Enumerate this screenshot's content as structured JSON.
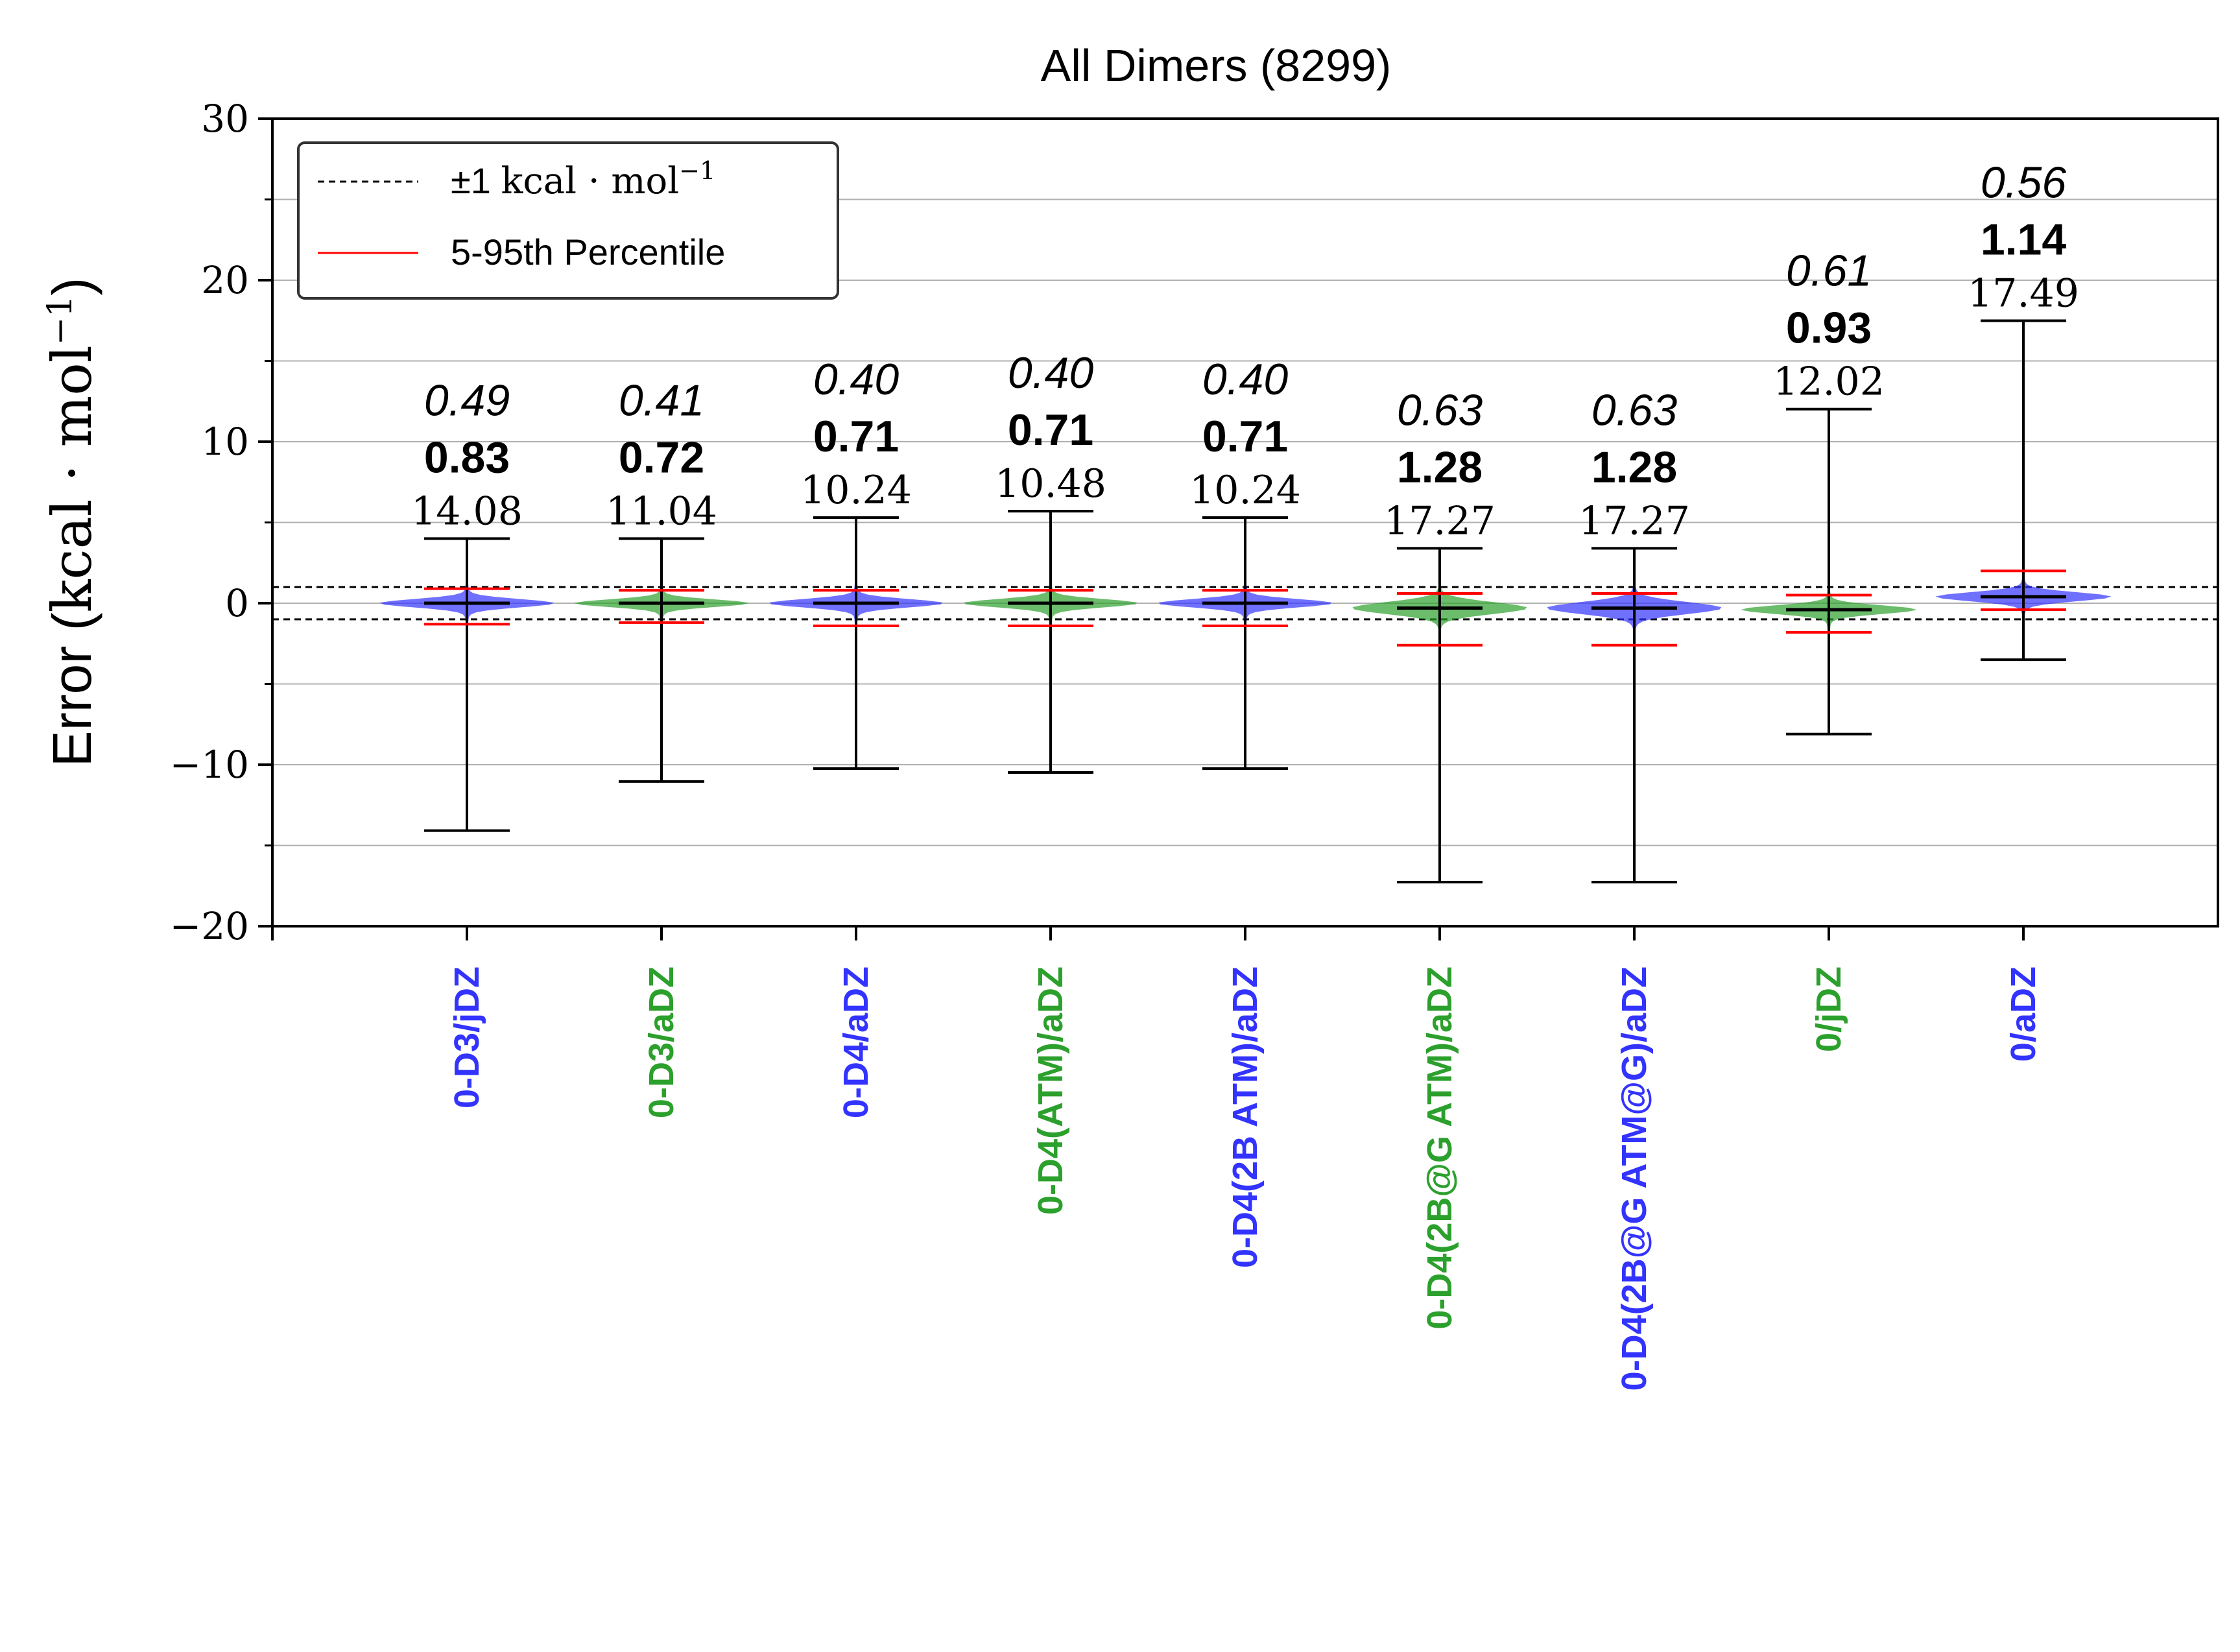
{
  "colors": {
    "blue": "#3333ff",
    "green": "#2ca02c",
    "red": "#ff0000",
    "black": "#000000",
    "grid": "#b0b0b0"
  },
  "chart_data": {
    "type": "violin",
    "title": "All Dimers (8299)",
    "ylabel_prefix": "Error (",
    "ylabel_unit": "kcal · mol",
    "ylabel_exp": "−1",
    "ylabel_suffix": ")",
    "ylim": [
      -20,
      30
    ],
    "yticks": [
      -20,
      -10,
      0,
      10,
      20,
      30
    ],
    "ytick_labels": [
      "−20",
      "−10",
      "0",
      "10",
      "20",
      "30"
    ],
    "grid": "horizontal",
    "reference_lines": [
      1,
      -1
    ],
    "legend": {
      "placement": "top-left",
      "entries": [
        {
          "label_prefix": "±1 ",
          "label_serif": "kcal · mol",
          "label_exp": "−1",
          "style": "dashed",
          "color": "#000000"
        },
        {
          "label": "5-95th Percentile",
          "style": "solid",
          "color": "#ff0000"
        }
      ]
    },
    "categories": [
      {
        "label": "0-D3/jDZ",
        "color": "#3333ff",
        "min": -14.08,
        "max": 4.0,
        "p5": -1.3,
        "p95": 0.9,
        "mean": 0.0,
        "mae_italic": "0.49",
        "rmse_bold": "0.83",
        "maxerr": "14.08"
      },
      {
        "label": "0-D3/aDZ",
        "color": "#2ca02c",
        "min": -11.04,
        "max": 4.0,
        "p5": -1.2,
        "p95": 0.8,
        "mean": 0.0,
        "mae_italic": "0.41",
        "rmse_bold": "0.72",
        "maxerr": "11.04"
      },
      {
        "label": "0-D4/aDZ",
        "color": "#3333ff",
        "min": -10.24,
        "max": 5.3,
        "p5": -1.4,
        "p95": 0.8,
        "mean": 0.0,
        "mae_italic": "0.40",
        "rmse_bold": "0.71",
        "maxerr": "10.24"
      },
      {
        "label": "0-D4(ATM)/aDZ",
        "color": "#2ca02c",
        "min": -10.48,
        "max": 5.7,
        "p5": -1.4,
        "p95": 0.8,
        "mean": 0.0,
        "mae_italic": "0.40",
        "rmse_bold": "0.71",
        "maxerr": "10.48"
      },
      {
        "label": "0-D4(2B ATM)/aDZ",
        "color": "#3333ff",
        "min": -10.24,
        "max": 5.3,
        "p5": -1.4,
        "p95": 0.8,
        "mean": 0.0,
        "mae_italic": "0.40",
        "rmse_bold": "0.71",
        "maxerr": "10.24"
      },
      {
        "label": "0-D4(2B@G ATM)/aDZ",
        "color": "#2ca02c",
        "min": -17.27,
        "max": 3.4,
        "p5": -2.6,
        "p95": 0.6,
        "mean": -0.3,
        "mae_italic": "0.63",
        "rmse_bold": "1.28",
        "maxerr": "17.27"
      },
      {
        "label": "0-D4(2B@G ATM@G)/aDZ",
        "color": "#3333ff",
        "min": -17.27,
        "max": 3.4,
        "p5": -2.6,
        "p95": 0.6,
        "mean": -0.3,
        "mae_italic": "0.63",
        "rmse_bold": "1.28",
        "maxerr": "17.27"
      },
      {
        "label": "0/jDZ",
        "color": "#2ca02c",
        "min": -8.1,
        "max": 12.02,
        "p5": -1.8,
        "p95": 0.5,
        "mean": -0.4,
        "mae_italic": "0.61",
        "rmse_bold": "0.93",
        "maxerr": "12.02"
      },
      {
        "label": "0/aDZ",
        "color": "#3333ff",
        "min": -3.5,
        "max": 17.49,
        "p5": -0.4,
        "p95": 2.0,
        "mean": 0.4,
        "mae_italic": "0.56",
        "rmse_bold": "1.14",
        "maxerr": "17.49"
      }
    ]
  }
}
